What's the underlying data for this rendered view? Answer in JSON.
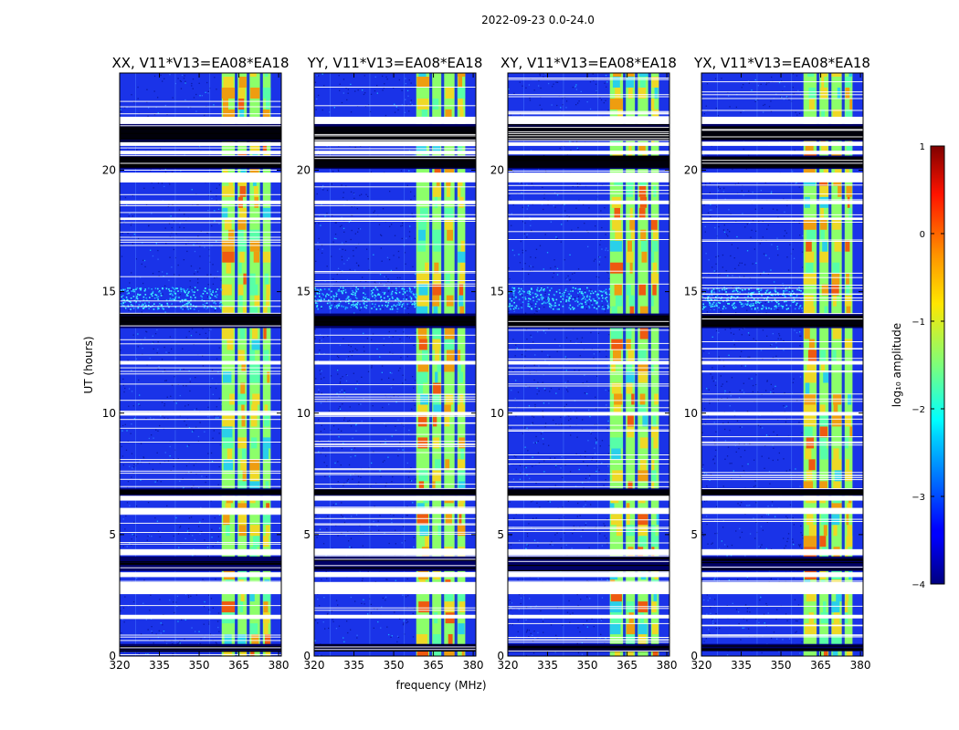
{
  "figure_title": "2022-09-23 0.0-24.0",
  "chart_data": {
    "type": "heatmap",
    "title": "2022-09-23 0.0-24.0",
    "xlabel": "frequency (MHz)",
    "ylabel": "UT (hours)",
    "xlim": [
      320,
      381
    ],
    "ylim": [
      0,
      24
    ],
    "xticks": [
      "320",
      "335",
      "350",
      "365",
      "380"
    ],
    "xtick_values": [
      320,
      335,
      350,
      365,
      380
    ],
    "yticks": [
      "0",
      "5",
      "10",
      "15",
      "20"
    ],
    "ytick_values": [
      0,
      5,
      10,
      15,
      20
    ],
    "panels": [
      {
        "title": "XX, V11*V13=EA08*EA18",
        "pol": "XX",
        "rfi_line_at_15h": true
      },
      {
        "title": "YY, V11*V13=EA08*EA18",
        "pol": "YY",
        "rfi_line_at_15h": true
      },
      {
        "title": "XY, V11*V13=EA08*EA18",
        "pol": "XY",
        "rfi_line_at_15h": true
      },
      {
        "title": "YX, V11*V13=EA08*EA18",
        "pol": "YX",
        "rfi_line_at_15h": true
      }
    ],
    "bright_band_mhz": [
      358.5,
      377
    ],
    "bright_subbands_mhz": [
      [
        358.5,
        363.5
      ],
      [
        364.5,
        368
      ],
      [
        369,
        373
      ],
      [
        374,
        377
      ]
    ],
    "flagged_white_hours": [
      [
        21.9,
        22.2
      ],
      [
        21.0,
        21.15
      ],
      [
        20.65,
        20.8
      ],
      [
        19.5,
        19.9
      ],
      [
        18.6,
        18.75
      ],
      [
        17.95,
        18.05
      ],
      [
        12.0,
        12.15
      ],
      [
        9.9,
        10.05
      ],
      [
        6.4,
        6.6
      ],
      [
        5.85,
        6.1
      ],
      [
        4.15,
        4.4
      ],
      [
        3.25,
        3.45
      ],
      [
        2.55,
        3.05
      ],
      [
        1.55,
        1.7
      ]
    ],
    "dark_rows_hours": [
      [
        21.2,
        21.9
      ],
      [
        20.05,
        20.6
      ],
      [
        13.5,
        14.1
      ],
      [
        6.6,
        6.9
      ],
      [
        3.5,
        4.1
      ],
      [
        0.2,
        0.5
      ]
    ],
    "colorbar": {
      "label": "log₁₀ amplitude",
      "range": [
        -4,
        1
      ],
      "ticks": [
        "1",
        "0",
        "−1",
        "−2",
        "−3",
        "−4"
      ],
      "tick_values": [
        1,
        0,
        -1,
        -2,
        -3,
        -4
      ],
      "colormap": "jet"
    }
  }
}
